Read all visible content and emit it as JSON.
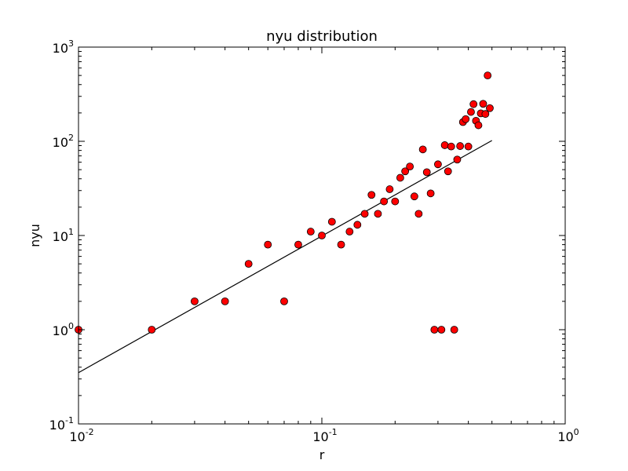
{
  "chart_data": {
    "type": "scatter",
    "title": "nyu distribution",
    "xlabel": "r",
    "ylabel": "nyu",
    "xscale": "log",
    "yscale": "log",
    "xlim": [
      0.01,
      1
    ],
    "ylim": [
      0.1,
      1000
    ],
    "grid": false,
    "legend": "none",
    "x_ticks": [
      {
        "base": "10",
        "exp": "-2"
      },
      {
        "base": "10",
        "exp": "-1"
      },
      {
        "base": "10",
        "exp": "0"
      }
    ],
    "y_ticks": [
      {
        "base": "10",
        "exp": "-1"
      },
      {
        "base": "10",
        "exp": "0"
      },
      {
        "base": "10",
        "exp": "1"
      },
      {
        "base": "10",
        "exp": "2"
      },
      {
        "base": "10",
        "exp": "3"
      }
    ],
    "points": {
      "color": "#ff0000",
      "edge_color": "#000000",
      "x": [
        0.01,
        0.02,
        0.03,
        0.04,
        0.05,
        0.06,
        0.07,
        0.08,
        0.09,
        0.1,
        0.11,
        0.12,
        0.13,
        0.14,
        0.15,
        0.16,
        0.17,
        0.18,
        0.19,
        0.2,
        0.21,
        0.22,
        0.23,
        0.24,
        0.25,
        0.26,
        0.27,
        0.28,
        0.29,
        0.3,
        0.31,
        0.32,
        0.33,
        0.34,
        0.35,
        0.36,
        0.37,
        0.38,
        0.39,
        0.4,
        0.41,
        0.42,
        0.43,
        0.44,
        0.45,
        0.46,
        0.47,
        0.48,
        0.49
      ],
      "y": [
        1,
        1,
        2,
        2,
        5,
        8,
        2,
        8,
        11,
        10,
        14,
        8,
        11,
        13,
        17,
        27,
        17,
        23,
        31,
        23,
        41,
        48,
        54,
        26,
        17,
        82,
        47,
        28,
        1,
        57,
        1,
        91,
        48,
        88,
        1,
        64,
        89,
        160,
        172,
        88,
        205,
        248,
        165,
        148,
        198,
        250,
        195,
        500,
        225
      ]
    },
    "fit_line": {
      "color": "#000000",
      "x": [
        0.01,
        0.5
      ],
      "y": [
        0.35,
        102
      ]
    }
  }
}
